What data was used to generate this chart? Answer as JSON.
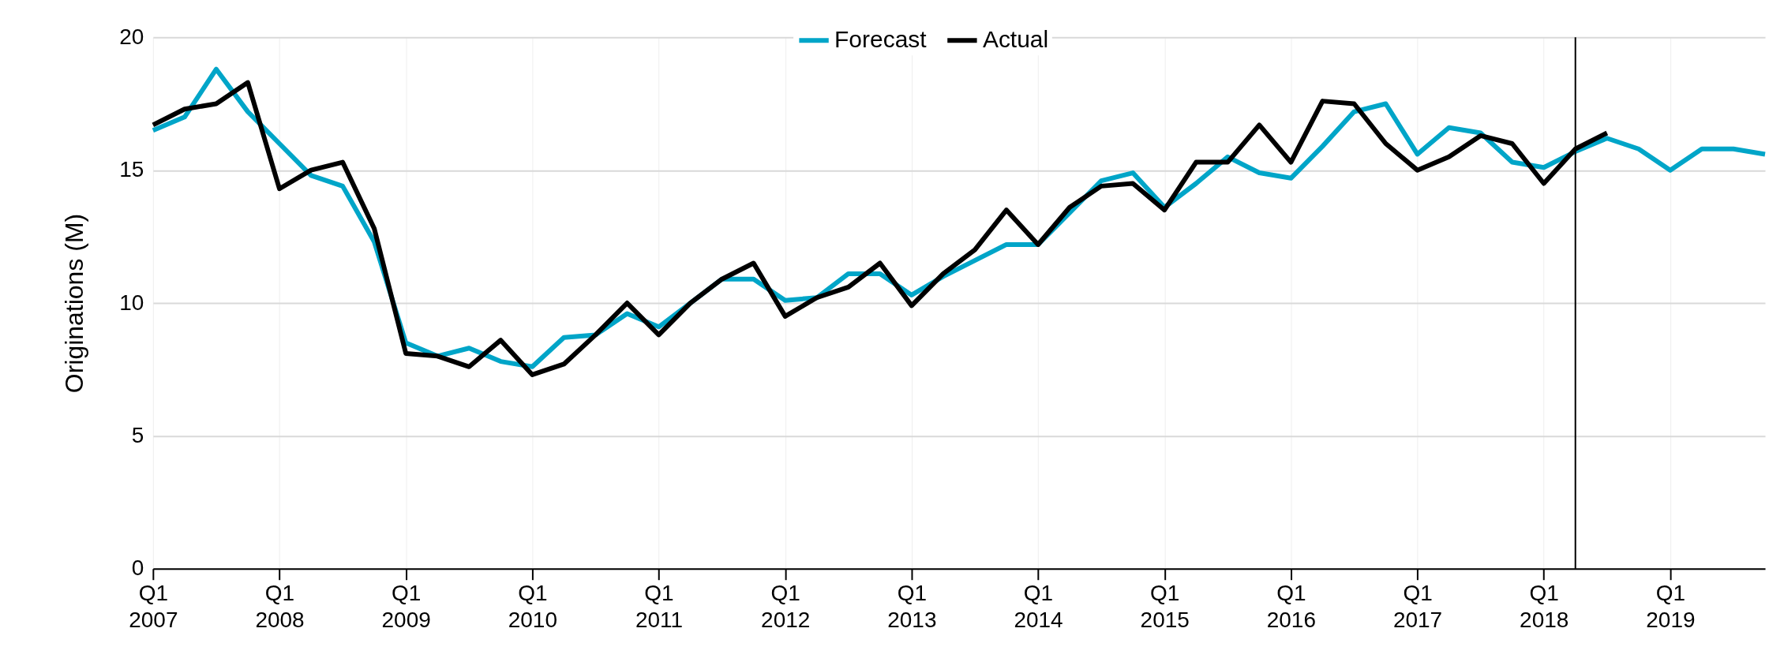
{
  "chart_data": {
    "type": "line",
    "ylabel": "Originations (M)",
    "categories": [
      "Q1\n2007",
      null,
      null,
      null,
      "Q1\n2008",
      null,
      null,
      null,
      "Q1\n2009",
      null,
      null,
      null,
      "Q1\n2010",
      null,
      null,
      null,
      "Q1\n2011",
      null,
      null,
      null,
      "Q1\n2012",
      null,
      null,
      null,
      "Q1\n2013",
      null,
      null,
      null,
      "Q1\n2014",
      null,
      null,
      null,
      "Q1\n2015",
      null,
      null,
      null,
      "Q1\n2016",
      null,
      null,
      null,
      "Q1\n2017",
      null,
      null,
      null,
      "Q1\n2018",
      null,
      null,
      null,
      "Q1\n2019",
      null,
      null,
      null
    ],
    "series": [
      {
        "name": "Forecast",
        "color": "#00a5c8",
        "values": [
          16.5,
          17.0,
          18.8,
          17.2,
          16.0,
          14.8,
          14.4,
          12.3,
          8.5,
          8.0,
          8.3,
          7.8,
          7.6,
          8.7,
          8.8,
          9.6,
          9.1,
          10.0,
          10.9,
          10.9,
          10.1,
          10.2,
          11.1,
          11.1,
          10.3,
          11.0,
          11.6,
          12.2,
          12.2,
          13.4,
          14.6,
          14.9,
          13.6,
          14.5,
          15.5,
          14.9,
          14.7,
          15.9,
          17.2,
          17.5,
          15.6,
          16.6,
          16.4,
          15.3,
          15.1,
          15.7,
          16.2,
          15.8,
          15.0,
          15.8,
          15.8,
          15.6
        ]
      },
      {
        "name": "Actual",
        "color": "#000000",
        "values": [
          16.7,
          17.3,
          17.5,
          18.3,
          14.3,
          15.0,
          15.3,
          12.8,
          8.1,
          8.0,
          7.6,
          8.6,
          7.3,
          7.7,
          8.8,
          10.0,
          8.8,
          10.0,
          10.9,
          11.5,
          9.5,
          10.2,
          10.6,
          11.5,
          9.9,
          11.1,
          12.0,
          13.5,
          12.2,
          13.6,
          14.4,
          14.5,
          13.5,
          15.3,
          15.3,
          16.7,
          15.3,
          17.6,
          17.5,
          16.0,
          15.0,
          15.5,
          16.3,
          16.0,
          14.5,
          15.8,
          16.4,
          null,
          null,
          null,
          null,
          null
        ]
      }
    ],
    "ylim": [
      0,
      20
    ],
    "yticks": [
      0,
      5,
      10,
      15,
      20
    ],
    "grid": true,
    "legend": "top",
    "marker": "none",
    "line_style": "solid"
  }
}
